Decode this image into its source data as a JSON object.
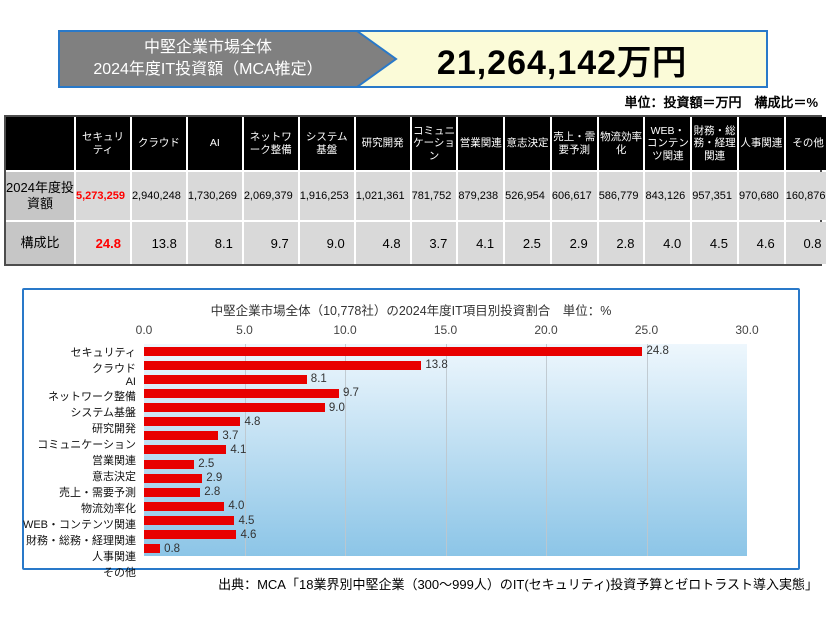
{
  "header": {
    "label_line1": "中堅企業市場全体",
    "label_line2": "2024年度IT投資額（MCA推定）",
    "amount": "21,264,142万円",
    "arrow_color": "#808080",
    "amount_bg": "#fbfbd8",
    "border_color": "#2979c9"
  },
  "unit_note": "単位：投資額＝万円　構成比＝%",
  "table": {
    "corner_label": "",
    "columns": [
      "セキュリティ",
      "クラウド",
      "AI",
      "ネットワーク整備",
      "システム基盤",
      "研究開発",
      "コミュニケーション",
      "営業関連",
      "意志決定",
      "売上・需要予測",
      "物流効率化",
      "WEB・コンテンツ関連",
      "財務・総務・経理関連",
      "人事関連",
      "その他"
    ],
    "rows": [
      {
        "label": "2024年度投資額",
        "values": [
          "5,273,259",
          "2,940,248",
          "1,730,269",
          "2,069,379",
          "1,916,253",
          "1,021,361",
          "781,752",
          "879,238",
          "526,954",
          "606,617",
          "586,779",
          "843,126",
          "957,351",
          "970,680",
          "160,876"
        ]
      },
      {
        "label": "構成比",
        "values": [
          "24.8",
          "13.8",
          "8.1",
          "9.7",
          "9.0",
          "4.8",
          "3.7",
          "4.1",
          "2.5",
          "2.9",
          "2.8",
          "4.0",
          "4.5",
          "4.6",
          "0.8"
        ]
      }
    ],
    "highlight_column": 0,
    "highlight_color": "#ff0000"
  },
  "chart_data": {
    "type": "bar",
    "orientation": "horizontal",
    "title": "中堅企業市場全体（10,778社）の2024年度IT項目別投資割合　単位：%",
    "categories": [
      "セキュリティ",
      "クラウド",
      "AI",
      "ネットワーク整備",
      "システム基盤",
      "研究開発",
      "コミュニケーション",
      "営業関連",
      "意志決定",
      "売上・需要予測",
      "物流効率化",
      "WEB・コンテンツ関連",
      "財務・総務・経理関連",
      "人事関連",
      "その他"
    ],
    "values": [
      24.8,
      13.8,
      8.1,
      9.7,
      9.0,
      4.8,
      3.7,
      4.1,
      2.5,
      2.9,
      2.8,
      4.0,
      4.5,
      4.6,
      0.8
    ],
    "value_labels": [
      "24.8",
      "13.8",
      "8.1",
      "9.7",
      "9.0",
      "4.8",
      "3.7",
      "4.1",
      "2.5",
      "2.9",
      "2.8",
      "4.0",
      "4.5",
      "4.6",
      "0.8"
    ],
    "xlabel": "",
    "ylabel": "",
    "xlim": [
      0,
      30
    ],
    "xticks": [
      "0.0",
      "5.0",
      "10.0",
      "15.0",
      "20.0",
      "25.0",
      "30.0"
    ],
    "grid": true,
    "legend": false,
    "bar_color": "#e80000",
    "plot_bg_gradient": [
      "#eef7fd",
      "#8cc5e7"
    ]
  },
  "footer": {
    "source": "出典：MCA「18業界別中堅企業（300～999人）のIT(セキュリティ)投資予算とゼロトラスト導入実態」"
  }
}
